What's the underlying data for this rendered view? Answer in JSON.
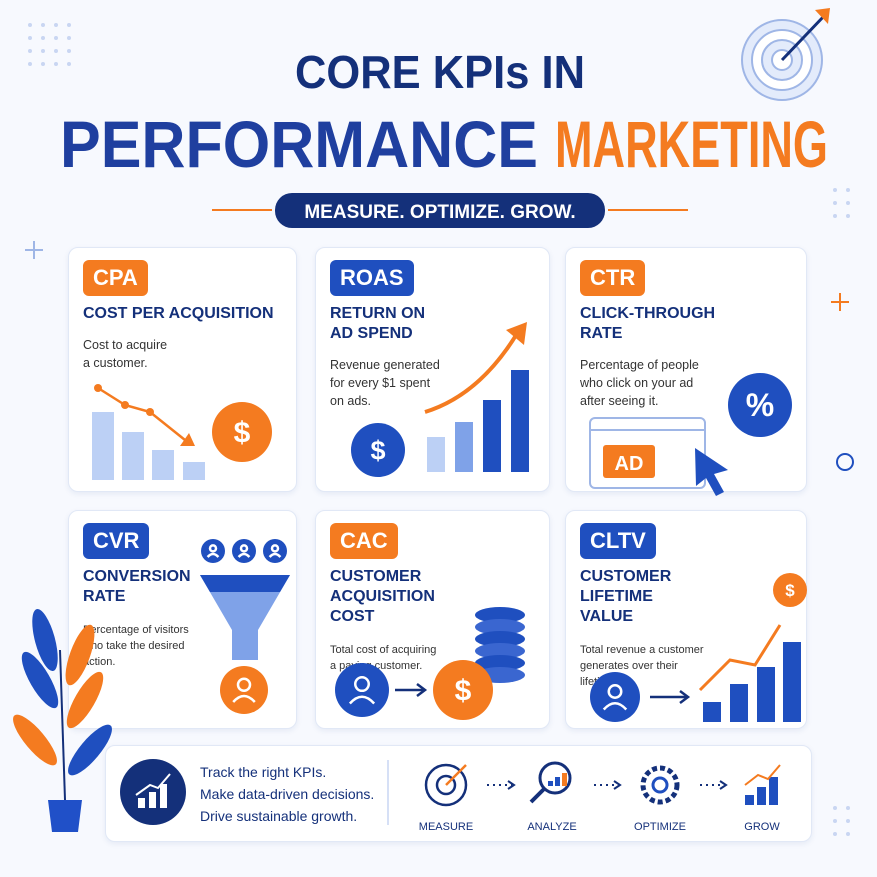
{
  "header": {
    "title_line1": "CORE KPIs IN",
    "title_line2a": "PERFORMANCE",
    "title_line2b": "MARKETING",
    "tagline": "MEASURE. OPTIMIZE. GROW."
  },
  "cards": [
    {
      "abbr": "CPA",
      "badge_color": "#f47b20",
      "name": [
        "COST PER ACQUISITION"
      ],
      "description": [
        "Cost to acquire",
        "a customer."
      ],
      "symbols": [
        "$"
      ]
    },
    {
      "abbr": "ROAS",
      "badge_color": "#1f4fbf",
      "name": [
        "RETURN ON",
        "AD SPEND"
      ],
      "description": [
        "Revenue generated",
        "for every $1 spent",
        "on ads."
      ],
      "symbols": [
        "$"
      ]
    },
    {
      "abbr": "CTR",
      "badge_color": "#f47b20",
      "name": [
        "CLICK-THROUGH",
        "RATE"
      ],
      "description": [
        "Percentage of people",
        "who click on your ad",
        "after seeing it."
      ],
      "symbols": [
        "%",
        "AD"
      ]
    },
    {
      "abbr": "CVR",
      "badge_color": "#1f4fbf",
      "name": [
        "CONVERSION",
        "RATE"
      ],
      "description": [
        "Percentage of visitors",
        "who take the desired",
        "action."
      ],
      "symbols": []
    },
    {
      "abbr": "CAC",
      "badge_color": "#f47b20",
      "name": [
        "CUSTOMER",
        "ACQUISITION",
        "COST"
      ],
      "description": [
        "Total cost of acquiring",
        "a paying customer."
      ],
      "symbols": [
        "$"
      ]
    },
    {
      "abbr": "CLTV",
      "badge_color": "#1f4fbf",
      "name": [
        "CUSTOMER",
        "LIFETIME",
        "VALUE"
      ],
      "description": [
        "Total revenue a customer",
        "generates over their",
        "lifetime."
      ],
      "symbols": [
        "$"
      ]
    }
  ],
  "footer": {
    "lines": [
      "Track the right KPIs.",
      "Make data-driven decisions.",
      "Drive sustainable growth."
    ],
    "steps": [
      "MEASURE",
      "ANALYZE",
      "OPTIMIZE",
      "GROW"
    ]
  }
}
